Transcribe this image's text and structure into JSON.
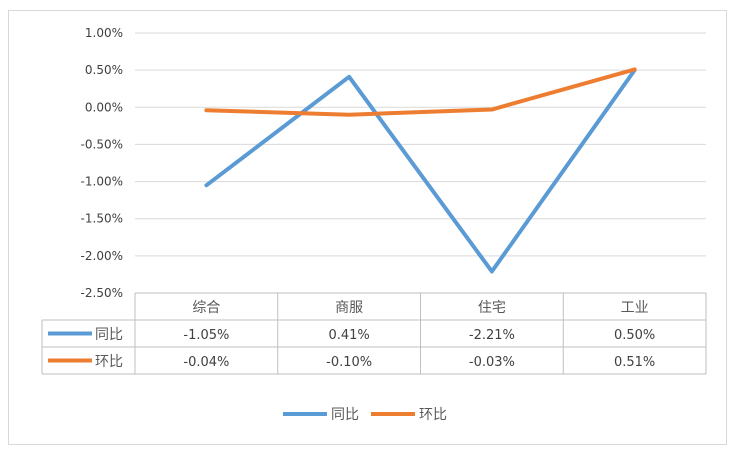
{
  "chart_data": {
    "type": "line",
    "categories": [
      "综合",
      "商服",
      "住宅",
      "工业"
    ],
    "series": [
      {
        "name": "同比",
        "values": [
          -1.05,
          0.41,
          -2.21,
          0.5
        ],
        "labels": [
          "-1.05%",
          "0.41%",
          "-2.21%",
          "0.50%"
        ],
        "color": "#5B9BD5"
      },
      {
        "name": "环比",
        "values": [
          -0.04,
          -0.1,
          -0.03,
          0.51
        ],
        "labels": [
          "-0.04%",
          "-0.10%",
          "-0.03%",
          "0.51%"
        ],
        "color": "#ED7D31"
      }
    ],
    "y_ticks": [
      "1.00%",
      "0.50%",
      "0.00%",
      "-0.50%",
      "-1.00%",
      "-1.50%",
      "-2.00%",
      "-2.50%"
    ],
    "ylim": [
      -2.5,
      1.0
    ],
    "grid": true,
    "data_table": true,
    "legend": "bottom"
  }
}
